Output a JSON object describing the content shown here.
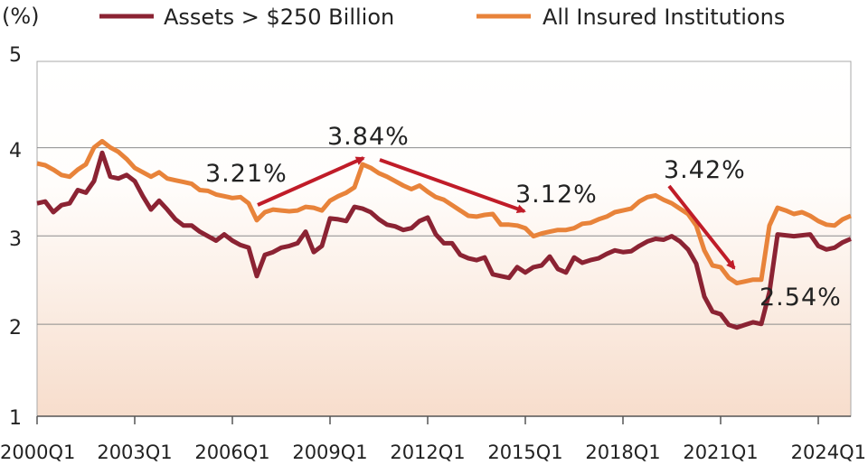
{
  "chart_data": {
    "type": "line",
    "unit_label": "(%)",
    "ylim": [
      1,
      5
    ],
    "y_ticks": [
      "1",
      "2",
      "3",
      "4",
      "5"
    ],
    "x_tick_labels": [
      "2000Q1",
      "2003Q1",
      "2006Q1",
      "2009Q1",
      "2012Q1",
      "2015Q1",
      "2018Q1",
      "2021Q1",
      "2024Q1"
    ],
    "x_tick_index": [
      0,
      12,
      24,
      36,
      48,
      60,
      72,
      84,
      96
    ],
    "n_quarters": 101,
    "series": [
      {
        "name": "Assets > $250 Billion",
        "color": "#8b2333",
        "values": [
          3.4,
          3.42,
          3.3,
          3.38,
          3.4,
          3.55,
          3.52,
          3.65,
          3.97,
          3.7,
          3.68,
          3.72,
          3.65,
          3.48,
          3.33,
          3.43,
          3.33,
          3.22,
          3.15,
          3.15,
          3.08,
          3.03,
          2.98,
          3.05,
          2.98,
          2.93,
          2.9,
          2.58,
          2.82,
          2.85,
          2.9,
          2.92,
          2.95,
          3.08,
          2.85,
          2.92,
          3.23,
          3.22,
          3.2,
          3.36,
          3.34,
          3.3,
          3.22,
          3.16,
          3.14,
          3.1,
          3.12,
          3.2,
          3.24,
          3.05,
          2.95,
          2.95,
          2.82,
          2.78,
          2.76,
          2.79,
          2.6,
          2.58,
          2.56,
          2.68,
          2.62,
          2.68,
          2.7,
          2.8,
          2.66,
          2.62,
          2.79,
          2.73,
          2.76,
          2.78,
          2.83,
          2.87,
          2.85,
          2.86,
          2.92,
          2.97,
          3.0,
          2.99,
          3.03,
          2.97,
          2.88,
          2.72,
          2.35,
          2.18,
          2.15,
          2.03,
          2.0,
          2.03,
          2.06,
          2.04,
          2.4,
          3.05,
          3.04,
          3.03,
          3.04,
          3.05,
          2.92,
          2.88,
          2.9,
          2.96,
          3.0
        ]
      },
      {
        "name": "All Insured Institutions",
        "color": "#e8833a",
        "values": [
          3.85,
          3.83,
          3.78,
          3.72,
          3.7,
          3.78,
          3.84,
          4.03,
          4.1,
          4.03,
          3.98,
          3.9,
          3.8,
          3.75,
          3.7,
          3.75,
          3.68,
          3.66,
          3.64,
          3.62,
          3.55,
          3.54,
          3.5,
          3.48,
          3.46,
          3.47,
          3.4,
          3.21,
          3.3,
          3.33,
          3.32,
          3.31,
          3.32,
          3.36,
          3.35,
          3.32,
          3.43,
          3.48,
          3.52,
          3.58,
          3.84,
          3.8,
          3.74,
          3.7,
          3.65,
          3.6,
          3.56,
          3.6,
          3.53,
          3.47,
          3.44,
          3.38,
          3.32,
          3.26,
          3.25,
          3.27,
          3.28,
          3.16,
          3.16,
          3.15,
          3.12,
          3.03,
          3.06,
          3.08,
          3.1,
          3.1,
          3.12,
          3.17,
          3.18,
          3.22,
          3.25,
          3.3,
          3.32,
          3.34,
          3.42,
          3.47,
          3.49,
          3.44,
          3.4,
          3.34,
          3.28,
          3.15,
          2.87,
          2.7,
          2.68,
          2.56,
          2.5,
          2.52,
          2.54,
          2.54,
          3.15,
          3.35,
          3.32,
          3.28,
          3.3,
          3.26,
          3.2,
          3.16,
          3.15,
          3.22,
          3.26
        ]
      }
    ],
    "annotations": [
      "3.21%",
      "3.84%",
      "3.12%",
      "3.42%",
      "2.54%"
    ]
  }
}
